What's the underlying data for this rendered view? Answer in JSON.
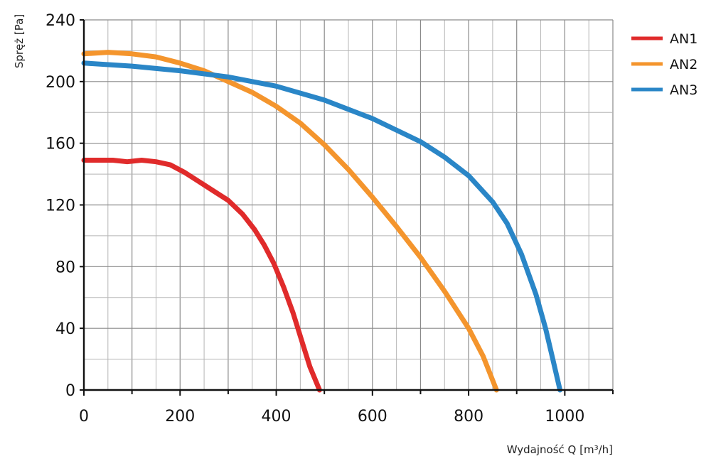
{
  "chart_data": {
    "type": "line",
    "title": "",
    "xlabel": "Wydajność Q [m³/h]",
    "ylabel": "Spręż [Pa]",
    "xlim": [
      0,
      1100
    ],
    "ylim": [
      0,
      240
    ],
    "x_ticks": [
      0,
      200,
      400,
      600,
      800,
      1000
    ],
    "y_ticks": [
      0,
      40,
      80,
      120,
      160,
      200,
      240
    ],
    "x_minor_step": 50,
    "y_minor_step": 20,
    "grid": true,
    "legend_position": "top-right",
    "series": [
      {
        "name": "AN1",
        "color": "#e02b2b",
        "x": [
          0,
          30,
          60,
          90,
          120,
          150,
          180,
          210,
          240,
          270,
          300,
          330,
          355,
          375,
          395,
          415,
          435,
          455,
          470,
          490
        ],
        "y": [
          149,
          149,
          149,
          148,
          149,
          148,
          146,
          141,
          135,
          129,
          123,
          114,
          104,
          94,
          82,
          67,
          50,
          30,
          15,
          0
        ]
      },
      {
        "name": "AN2",
        "color": "#f4952d",
        "x": [
          0,
          50,
          100,
          150,
          200,
          250,
          300,
          350,
          400,
          450,
          500,
          550,
          600,
          650,
          700,
          750,
          800,
          830,
          858
        ],
        "y": [
          218,
          219,
          218,
          216,
          212,
          207,
          200,
          193,
          184,
          173,
          159,
          143,
          125,
          106,
          86,
          64,
          40,
          22,
          0
        ]
      },
      {
        "name": "AN3",
        "color": "#2a86c7",
        "x": [
          0,
          100,
          200,
          300,
          400,
          500,
          600,
          700,
          750,
          800,
          850,
          880,
          910,
          940,
          960,
          975,
          990
        ],
        "y": [
          212,
          210,
          207,
          203,
          197,
          188,
          176,
          161,
          151,
          139,
          122,
          108,
          88,
          62,
          40,
          20,
          0
        ]
      }
    ]
  }
}
